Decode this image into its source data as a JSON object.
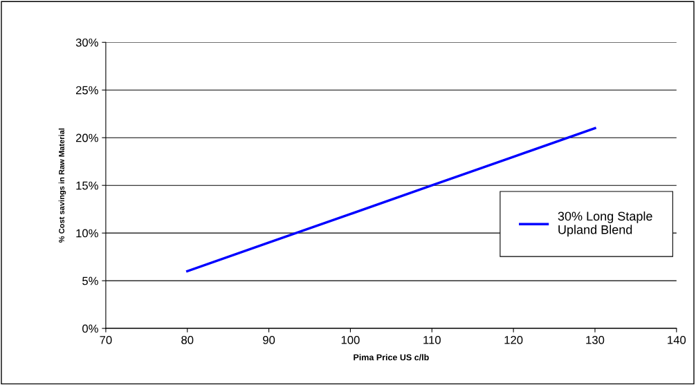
{
  "chart_data": {
    "type": "line",
    "xlabel": "Pima Price US c/lb",
    "ylabel": "% Cost savings in Raw Material",
    "x": [
      80,
      90,
      100,
      110,
      120,
      130
    ],
    "series": [
      {
        "name": "30% Long Staple\nUpland Blend",
        "color": "#0000ff",
        "values": [
          6,
          9,
          12,
          15,
          18,
          21
        ]
      }
    ],
    "xlim": [
      70,
      140
    ],
    "xticks": [
      70,
      80,
      90,
      100,
      110,
      120,
      130,
      140
    ],
    "ylim": [
      0,
      30
    ],
    "yticks": [
      {
        "value": 0,
        "label": "0%"
      },
      {
        "value": 5,
        "label": "5%"
      },
      {
        "value": 10,
        "label": "10%"
      },
      {
        "value": 15,
        "label": "15%"
      },
      {
        "value": 20,
        "label": "20%"
      },
      {
        "value": 25,
        "label": "25%"
      },
      {
        "value": 30,
        "label": "30%"
      }
    ],
    "grid": "y",
    "legend": "right",
    "marker": "none",
    "line_style": "solid"
  }
}
